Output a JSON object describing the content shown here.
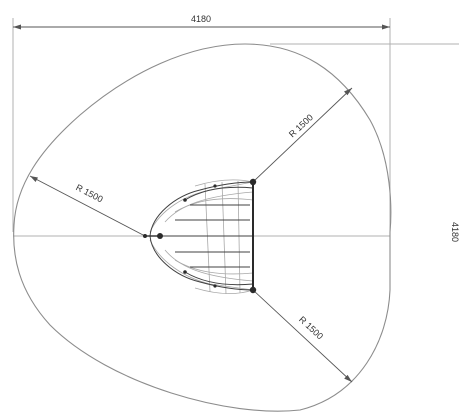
{
  "dimensions": {
    "width_label": "4180",
    "height_label": "4180"
  },
  "radius_labels": {
    "left": "R 1500",
    "upper_right": "R 1500",
    "lower_right": "R 1500"
  },
  "colors": {
    "outline": "#8c8c8c",
    "dimension": "#555555",
    "structure": "#2a2a2a",
    "background": "#ffffff"
  }
}
